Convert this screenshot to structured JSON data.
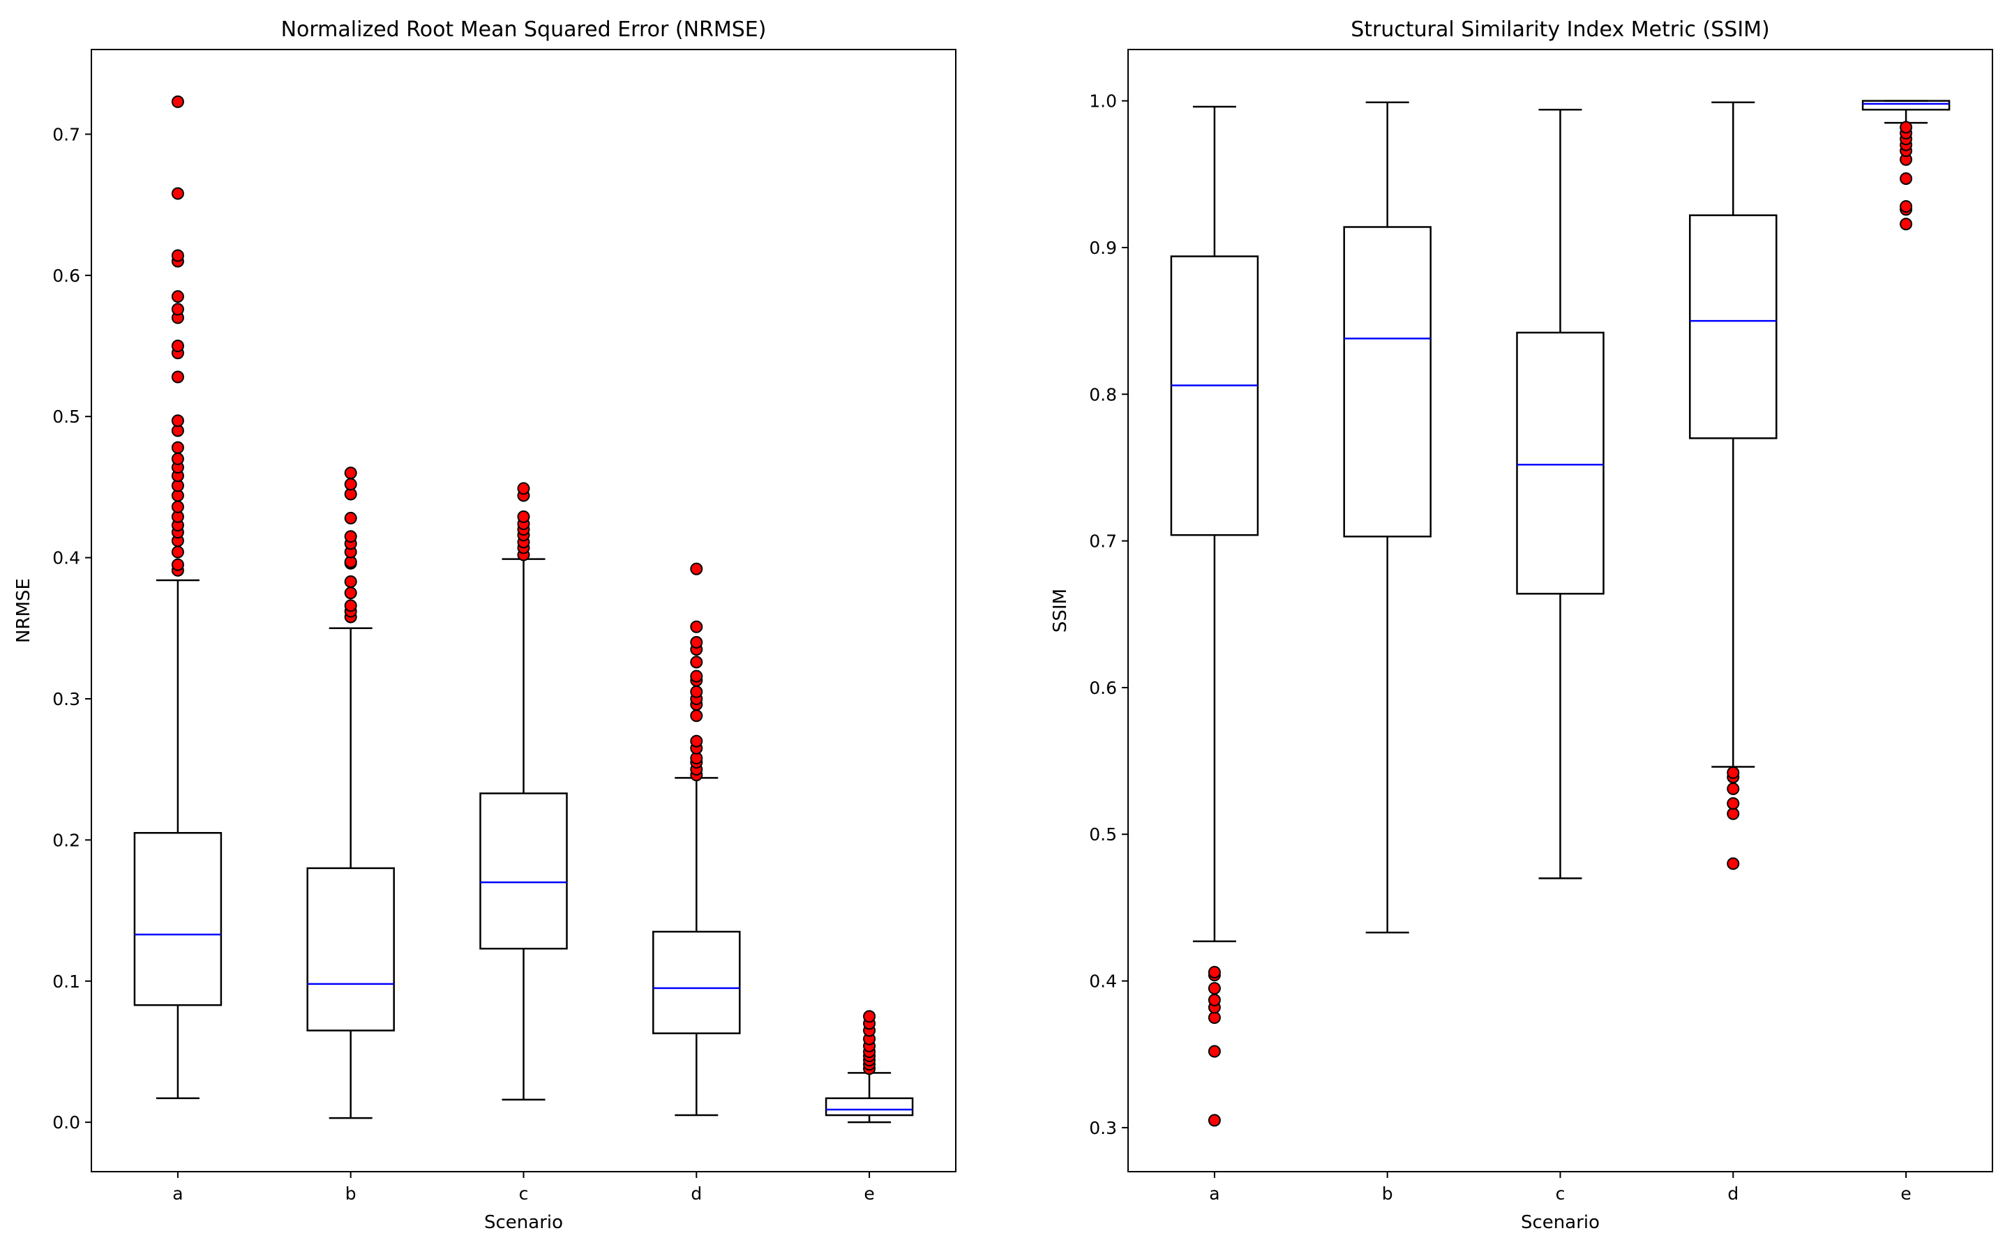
{
  "colors": {
    "median": "#0000ff",
    "outlier_fill": "#ff0000",
    "outlier_edge": "#000000",
    "box": "#000000"
  },
  "chart_data": [
    {
      "id": "nrmse",
      "type": "box",
      "title": "Normalized Root Mean Squared Error (NRMSE)",
      "xlabel": "Scenario",
      "ylabel": "NRMSE",
      "ylim": [
        -0.035,
        0.76
      ],
      "yticks": [
        0.0,
        0.1,
        0.2,
        0.3,
        0.4,
        0.5,
        0.6,
        0.7
      ],
      "ytick_labels": [
        "0.0",
        "0.1",
        "0.2",
        "0.3",
        "0.4",
        "0.5",
        "0.6",
        "0.7"
      ],
      "grid": false,
      "categories": [
        "a",
        "b",
        "c",
        "d",
        "e"
      ],
      "boxes": [
        {
          "label": "a",
          "whislo": 0.017,
          "q1": 0.083,
          "med": 0.133,
          "q3": 0.205,
          "whishi": 0.384,
          "fliers": [
            0.391,
            0.395,
            0.404,
            0.412,
            0.418,
            0.423,
            0.429,
            0.436,
            0.444,
            0.451,
            0.458,
            0.464,
            0.47,
            0.478,
            0.49,
            0.497,
            0.528,
            0.545,
            0.55,
            0.57,
            0.576,
            0.585,
            0.61,
            0.614,
            0.658,
            0.723
          ]
        },
        {
          "label": "b",
          "whislo": 0.003,
          "q1": 0.065,
          "med": 0.098,
          "q3": 0.18,
          "whishi": 0.35,
          "fliers": [
            0.358,
            0.362,
            0.366,
            0.375,
            0.383,
            0.396,
            0.397,
            0.404,
            0.41,
            0.415,
            0.428,
            0.445,
            0.452,
            0.46
          ]
        },
        {
          "label": "c",
          "whislo": 0.016,
          "q1": 0.123,
          "med": 0.17,
          "q3": 0.233,
          "whishi": 0.399,
          "fliers": [
            0.402,
            0.407,
            0.411,
            0.416,
            0.42,
            0.424,
            0.429,
            0.444,
            0.449
          ]
        },
        {
          "label": "d",
          "whislo": 0.005,
          "q1": 0.063,
          "med": 0.095,
          "q3": 0.135,
          "whishi": 0.244,
          "fliers": [
            0.246,
            0.25,
            0.255,
            0.258,
            0.265,
            0.27,
            0.288,
            0.296,
            0.3,
            0.305,
            0.313,
            0.316,
            0.326,
            0.335,
            0.34,
            0.351,
            0.392
          ]
        },
        {
          "label": "e",
          "whislo": 0.0,
          "q1": 0.005,
          "med": 0.009,
          "q3": 0.017,
          "whishi": 0.035,
          "fliers": [
            0.038,
            0.041,
            0.044,
            0.047,
            0.05,
            0.054,
            0.059,
            0.065,
            0.07,
            0.075
          ]
        }
      ]
    },
    {
      "id": "ssim",
      "type": "box",
      "title": "Structural Similarity Index Metric (SSIM)",
      "xlabel": "Scenario",
      "ylabel": "SSIM",
      "ylim": [
        0.27,
        1.035
      ],
      "yticks": [
        0.3,
        0.4,
        0.5,
        0.6,
        0.7,
        0.8,
        0.9,
        1.0
      ],
      "ytick_labels": [
        "0.3",
        "0.4",
        "0.5",
        "0.6",
        "0.7",
        "0.8",
        "0.9",
        "1.0"
      ],
      "grid": false,
      "categories": [
        "a",
        "b",
        "c",
        "d",
        "e"
      ],
      "boxes": [
        {
          "label": "a",
          "whislo": 0.427,
          "q1": 0.704,
          "med": 0.806,
          "q3": 0.894,
          "whishi": 0.996,
          "fliers": [
            0.305,
            0.352,
            0.375,
            0.382,
            0.387,
            0.395,
            0.404,
            0.406
          ]
        },
        {
          "label": "b",
          "whislo": 0.433,
          "q1": 0.703,
          "med": 0.838,
          "q3": 0.914,
          "whishi": 0.999,
          "fliers": []
        },
        {
          "label": "c",
          "whislo": 0.47,
          "q1": 0.664,
          "med": 0.752,
          "q3": 0.842,
          "whishi": 0.994,
          "fliers": []
        },
        {
          "label": "d",
          "whislo": 0.546,
          "q1": 0.77,
          "med": 0.85,
          "q3": 0.922,
          "whishi": 0.999,
          "fliers": [
            0.48,
            0.514,
            0.521,
            0.531,
            0.539,
            0.542
          ]
        },
        {
          "label": "e",
          "whislo": 0.985,
          "q1": 0.994,
          "med": 0.998,
          "q3": 1.0,
          "whishi": 1.0,
          "fliers": [
            0.916,
            0.926,
            0.928,
            0.947,
            0.96,
            0.966,
            0.97,
            0.974,
            0.978,
            0.982
          ]
        }
      ]
    }
  ]
}
